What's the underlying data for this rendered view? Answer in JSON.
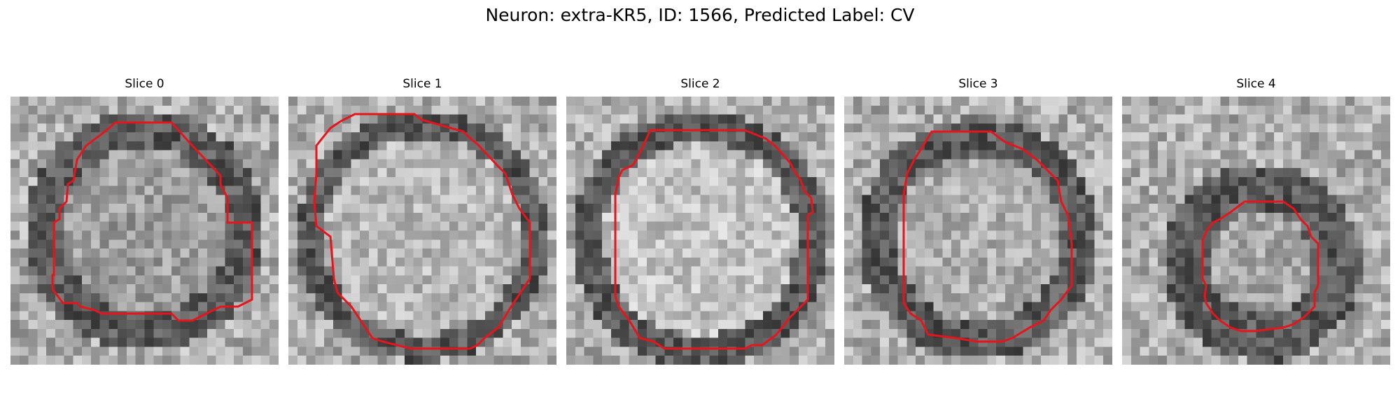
{
  "figure": {
    "title": "Neuron: extra-KR5, ID: 1566, Predicted Label: CV"
  },
  "slices": [
    {
      "title": "Slice 0",
      "image_content": "grayscale EM micrograph crop with dark granular ring around a round region",
      "outline_icon": "red-contour"
    },
    {
      "title": "Slice 1",
      "image_content": "grayscale EM micrograph crop, bright central vesicle region",
      "outline_icon": "red-contour"
    },
    {
      "title": "Slice 2",
      "image_content": "grayscale EM micrograph crop, bright round vesicle with dark rim",
      "outline_icon": "red-contour"
    },
    {
      "title": "Slice 3",
      "image_content": "grayscale EM micrograph crop, vesicle with dark ring membrane",
      "outline_icon": "red-contour"
    },
    {
      "title": "Slice 4",
      "image_content": "grayscale EM micrograph crop, small vesicle with thick dark ring",
      "outline_icon": "red-contour"
    }
  ],
  "colors": {
    "contour": "#e8141c",
    "background": "#ffffff"
  }
}
